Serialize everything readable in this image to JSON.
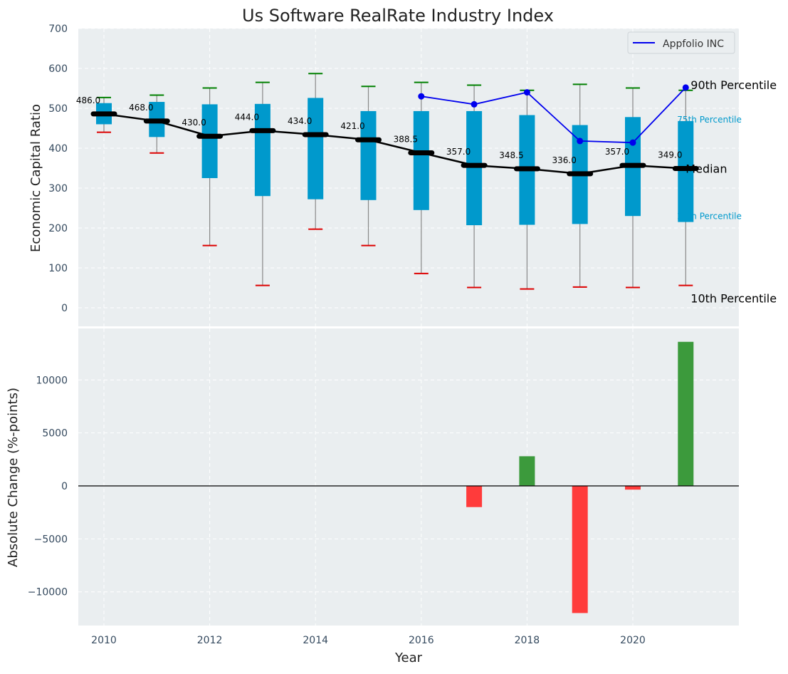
{
  "chart_data": [
    {
      "type": "box",
      "title": "Us Software RealRate Industry Index",
      "ylabel": "Economic Capital Ratio",
      "ylim": [
        -50,
        700
      ],
      "yticks": [
        0,
        100,
        200,
        300,
        400,
        500,
        600,
        700
      ],
      "grid": true,
      "legend": {
        "position": "top-right",
        "entries": [
          "Appfolio INC"
        ]
      },
      "years": [
        2010,
        2011,
        2012,
        2013,
        2014,
        2015,
        2016,
        2017,
        2018,
        2019,
        2020,
        2021
      ],
      "median": [
        486.0,
        468.0,
        430.0,
        444.0,
        434.0,
        421.0,
        388.5,
        357.0,
        348.5,
        336.0,
        357.0,
        349.0
      ],
      "median_labels": [
        "486.0",
        "468.0",
        "430.0",
        "444.0",
        "434.0",
        "421.0",
        "388.5",
        "357.0",
        "348.5",
        "336.0",
        "357.0",
        "349.0"
      ],
      "q1": [
        460,
        428,
        325,
        280,
        272,
        270,
        245,
        207,
        208,
        210,
        230,
        215
      ],
      "q3": [
        513,
        516,
        510,
        511,
        526,
        493,
        493,
        493,
        483,
        458,
        478,
        468
      ],
      "p10": [
        440,
        388,
        156,
        56,
        197,
        156,
        86,
        51,
        47,
        52,
        51,
        56
      ],
      "p90": [
        527,
        533,
        551,
        565,
        587,
        555,
        565,
        558,
        545,
        560,
        551,
        545
      ],
      "company": {
        "name": "Appfolio INC",
        "years": [
          2016,
          2017,
          2018,
          2019,
          2020,
          2021
        ],
        "values": [
          530,
          510,
          540,
          418,
          414,
          552
        ]
      },
      "annotations": {
        "p90": "90th Percentile",
        "p75": "75th Percentile",
        "median": "Median",
        "p25": "25th Percentile",
        "p10": "10th Percentile"
      },
      "colors": {
        "box": "#0099cc",
        "median": "#000000",
        "company": "#0000ee",
        "whisker_top": "#008000",
        "whisker_bottom": "#dd0000",
        "background": "#eaeef0"
      }
    },
    {
      "type": "bar",
      "ylabel": "Absolute Change (%-points)",
      "xlabel": "Year",
      "ylim": [
        -13000,
        14000
      ],
      "yticks": [
        -10000,
        -5000,
        0,
        5000,
        10000
      ],
      "xticks": [
        2010,
        2012,
        2014,
        2016,
        2018,
        2020
      ],
      "grid": true,
      "years": [
        2017,
        2018,
        2019,
        2020,
        2021
      ],
      "values": [
        -2000,
        2800,
        -12000,
        -350,
        13600
      ],
      "colors": {
        "positive": "#3c9a3c",
        "negative": "#ff3b3b"
      }
    }
  ]
}
